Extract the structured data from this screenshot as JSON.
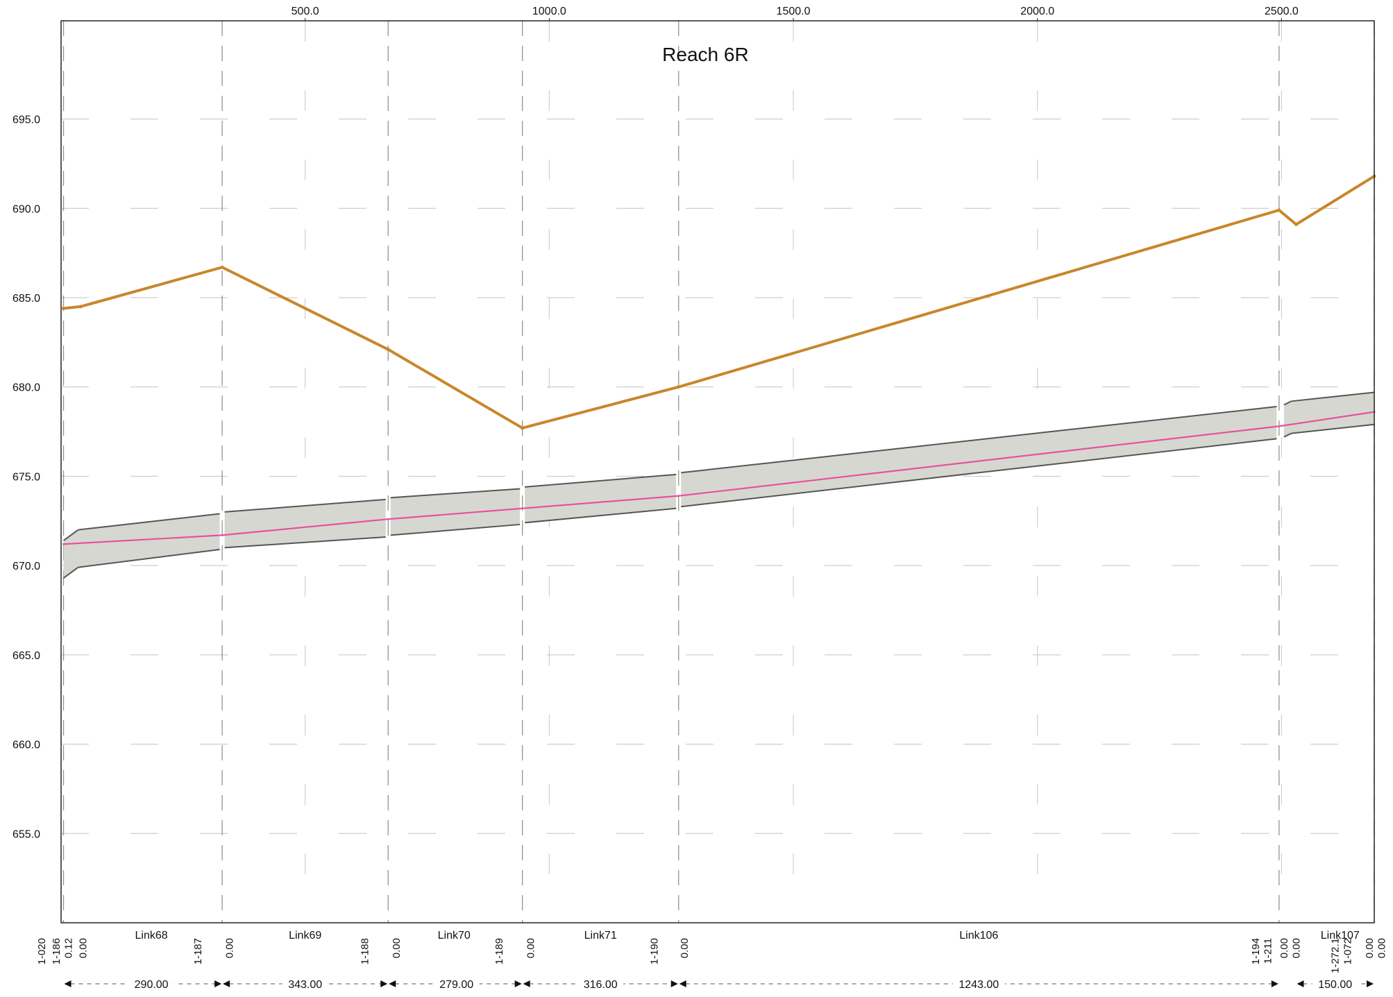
{
  "colors": {
    "ground": "#c8862a",
    "water": "#e8519a",
    "pipe_edge": "#555555",
    "pipe_fill": "#d7d7d2",
    "grid": "#9a9a9a",
    "axis": "#222222"
  },
  "chart_data": {
    "type": "line",
    "title": "Reach 6R",
    "xlabel": "",
    "ylabel": "",
    "xlim": [
      0,
      2690
    ],
    "ylim": [
      650,
      700.5
    ],
    "x_ticks": [
      {
        "v": 500,
        "label": "500.0"
      },
      {
        "v": 1000,
        "label": "1000.0"
      },
      {
        "v": 1500,
        "label": "1500.0"
      },
      {
        "v": 2000,
        "label": "2000.0"
      },
      {
        "v": 2500,
        "label": "2500.0"
      }
    ],
    "y_ticks": [
      {
        "v": 695,
        "label": "695.0"
      },
      {
        "v": 690,
        "label": "690.0"
      },
      {
        "v": 685,
        "label": "685.0"
      },
      {
        "v": 680,
        "label": "680.0"
      },
      {
        "v": 675,
        "label": "675.0"
      },
      {
        "v": 670,
        "label": "670.0"
      },
      {
        "v": 665,
        "label": "665.0"
      },
      {
        "v": 660,
        "label": "660.0"
      },
      {
        "v": 655,
        "label": "655.0"
      }
    ],
    "grid": true,
    "series": [
      {
        "role": "ground",
        "x": [
          5,
          40,
          330,
          670,
          945,
          1265,
          2495,
          2530,
          2690
        ],
        "y": [
          684.4,
          684.5,
          686.7,
          682.1,
          677.7,
          680.0,
          689.9,
          689.1,
          691.8
        ]
      },
      {
        "role": "hgl",
        "x": [
          5,
          330,
          670,
          945,
          1265,
          2495,
          2690
        ],
        "y": [
          671.2,
          671.7,
          672.6,
          673.2,
          673.9,
          677.8,
          678.6
        ]
      }
    ],
    "pipes": [
      {
        "x": [
          5,
          35
        ],
        "bottom": [
          669.3,
          669.9
        ],
        "top": [
          671.4,
          672.0
        ]
      },
      {
        "x": [
          35,
          325
        ],
        "bottom": [
          669.9,
          670.9
        ],
        "top": [
          672.0,
          672.9
        ]
      },
      {
        "x": [
          335,
          665
        ],
        "bottom": [
          671.0,
          671.6
        ],
        "top": [
          673.0,
          673.7
        ]
      },
      {
        "x": [
          675,
          940
        ],
        "bottom": [
          671.7,
          672.3
        ],
        "top": [
          673.8,
          674.3
        ]
      },
      {
        "x": [
          950,
          1260
        ],
        "bottom": [
          672.4,
          673.2
        ],
        "top": [
          674.4,
          675.1
        ]
      },
      {
        "x": [
          1270,
          2490
        ],
        "bottom": [
          673.3,
          677.1
        ],
        "top": [
          675.2,
          678.9
        ]
      },
      {
        "x": [
          2505,
          2520
        ],
        "bottom": [
          677.2,
          677.4
        ],
        "top": [
          679.0,
          679.2
        ]
      },
      {
        "x": [
          2520,
          2690
        ],
        "bottom": [
          677.4,
          677.9
        ],
        "top": [
          679.2,
          679.7
        ]
      }
    ],
    "node_lines_x": [
      5,
      330,
      670,
      945,
      1265,
      2495,
      2690
    ],
    "node_labels": [
      {
        "x": -40,
        "text": "1-020"
      },
      {
        "x": -10,
        "text": "1-186"
      },
      {
        "x": 15,
        "text": "0.12"
      },
      {
        "x": 45,
        "text": "0.00"
      },
      {
        "x": 280,
        "text": "1-187"
      },
      {
        "x": 345,
        "text": "0.00"
      },
      {
        "x": 622,
        "text": "1-188"
      },
      {
        "x": 687,
        "text": "0.00"
      },
      {
        "x": 897,
        "text": "1-189"
      },
      {
        "x": 962,
        "text": "0.00"
      },
      {
        "x": 1215,
        "text": "1-190"
      },
      {
        "x": 1277,
        "text": "0.00"
      },
      {
        "x": 2447,
        "text": "1-194"
      },
      {
        "x": 2472,
        "text": "1-211"
      },
      {
        "x": 2505,
        "text": "0.00"
      },
      {
        "x": 2530,
        "text": "0.00"
      },
      {
        "x": 2610,
        "text": "1-272.1"
      },
      {
        "x": 2635,
        "text": "1-072"
      },
      {
        "x": 2680,
        "text": "0.00"
      },
      {
        "x": 2705,
        "text": "0.00"
      }
    ],
    "links": [
      {
        "x": 185,
        "name": "Link68"
      },
      {
        "x": 500,
        "name": "Link69"
      },
      {
        "x": 805,
        "name": "Link70"
      },
      {
        "x": 1105,
        "name": "Link71"
      },
      {
        "x": 1880,
        "name": "Link106"
      },
      {
        "x": 2620,
        "name": "Link107"
      }
    ],
    "lengths": [
      {
        "x1": 5,
        "x2": 330,
        "mid": 185,
        "text": "290.00"
      },
      {
        "x1": 330,
        "x2": 670,
        "mid": 500,
        "text": "343.00"
      },
      {
        "x1": 670,
        "x2": 945,
        "mid": 810,
        "text": "279.00"
      },
      {
        "x1": 945,
        "x2": 1265,
        "mid": 1105,
        "text": "316.00"
      },
      {
        "x1": 1265,
        "x2": 2495,
        "mid": 1880,
        "text": "1243.00"
      },
      {
        "x1": 2530,
        "x2": 2690,
        "mid": 2610,
        "text": "150.00"
      }
    ]
  }
}
